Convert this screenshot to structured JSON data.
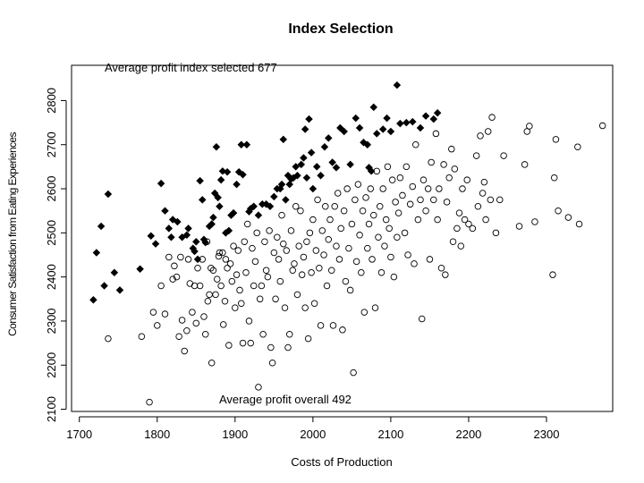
{
  "chart_data": {
    "type": "scatter",
    "title": "Index Selection",
    "xlabel": "Costs of Production",
    "ylabel": "Consumer Satisfaction from Eating Experiences",
    "xlim": [
      1690,
      2385
    ],
    "ylim": [
      2095,
      2880
    ],
    "xticks": [
      1700,
      1800,
      1900,
      2000,
      2100,
      2200,
      2300
    ],
    "yticks": [
      2100,
      2200,
      2300,
      2400,
      2500,
      2600,
      2700,
      2800
    ],
    "grid": false,
    "legend": "none",
    "annotations": {
      "selected": "Average profit index selected 677",
      "overall": "Average profit overall 492"
    },
    "series": [
      {
        "marker": "filled-diamond",
        "color": "#000000",
        "points": [
          [
            1718,
            2348
          ],
          [
            1722,
            2455
          ],
          [
            1728,
            2515
          ],
          [
            1732,
            2380
          ],
          [
            1737,
            2588
          ],
          [
            1745,
            2410
          ],
          [
            1752,
            2370
          ],
          [
            1778,
            2418
          ],
          [
            1792,
            2493
          ],
          [
            1798,
            2475
          ],
          [
            1805,
            2612
          ],
          [
            1810,
            2550
          ],
          [
            1815,
            2510
          ],
          [
            1818,
            2490
          ],
          [
            1820,
            2530
          ],
          [
            1826,
            2525
          ],
          [
            1832,
            2490
          ],
          [
            1838,
            2495
          ],
          [
            1840,
            2510
          ],
          [
            1846,
            2465
          ],
          [
            1848,
            2458
          ],
          [
            1850,
            2480
          ],
          [
            1852,
            2440
          ],
          [
            1855,
            2618
          ],
          [
            1858,
            2575
          ],
          [
            1860,
            2485
          ],
          [
            1862,
            2478
          ],
          [
            1867,
            2515
          ],
          [
            1870,
            2520
          ],
          [
            1872,
            2535
          ],
          [
            1874,
            2590
          ],
          [
            1876,
            2695
          ],
          [
            1878,
            2580
          ],
          [
            1880,
            2560
          ],
          [
            1882,
            2620
          ],
          [
            1884,
            2640
          ],
          [
            1888,
            2500
          ],
          [
            1890,
            2638
          ],
          [
            1892,
            2505
          ],
          [
            1895,
            2540
          ],
          [
            1898,
            2545
          ],
          [
            1902,
            2610
          ],
          [
            1905,
            2638
          ],
          [
            1908,
            2700
          ],
          [
            1910,
            2632
          ],
          [
            1915,
            2700
          ],
          [
            1918,
            2548
          ],
          [
            1920,
            2555
          ],
          [
            1924,
            2560
          ],
          [
            1930,
            2540
          ],
          [
            1935,
            2565
          ],
          [
            1940,
            2565
          ],
          [
            1945,
            2560
          ],
          [
            1950,
            2582
          ],
          [
            1954,
            2600
          ],
          [
            1958,
            2600
          ],
          [
            1960,
            2610
          ],
          [
            1962,
            2712
          ],
          [
            1965,
            2575
          ],
          [
            1968,
            2630
          ],
          [
            1970,
            2610
          ],
          [
            1972,
            2622
          ],
          [
            1975,
            2625
          ],
          [
            1978,
            2650
          ],
          [
            1980,
            2630
          ],
          [
            1985,
            2655
          ],
          [
            1988,
            2670
          ],
          [
            1990,
            2735
          ],
          [
            1992,
            2625
          ],
          [
            1995,
            2758
          ],
          [
            1998,
            2682
          ],
          [
            2000,
            2600
          ],
          [
            2005,
            2650
          ],
          [
            2010,
            2630
          ],
          [
            2015,
            2695
          ],
          [
            2020,
            2715
          ],
          [
            2025,
            2660
          ],
          [
            2030,
            2648
          ],
          [
            2035,
            2738
          ],
          [
            2040,
            2730
          ],
          [
            2048,
            2655
          ],
          [
            2055,
            2760
          ],
          [
            2060,
            2738
          ],
          [
            2065,
            2705
          ],
          [
            2070,
            2700
          ],
          [
            2072,
            2648
          ],
          [
            2075,
            2640
          ],
          [
            2078,
            2785
          ],
          [
            2082,
            2725
          ],
          [
            2090,
            2735
          ],
          [
            2095,
            2760
          ],
          [
            2100,
            2730
          ],
          [
            2108,
            2835
          ],
          [
            2112,
            2748
          ],
          [
            2120,
            2750
          ],
          [
            2128,
            2752
          ],
          [
            2138,
            2738
          ],
          [
            2145,
            2765
          ],
          [
            2155,
            2758
          ],
          [
            2160,
            2772
          ]
        ]
      },
      {
        "marker": "open-circle",
        "color": "#000000",
        "points": [
          [
            1737,
            2260
          ],
          [
            1780,
            2265
          ],
          [
            1790,
            2116
          ],
          [
            1795,
            2320
          ],
          [
            1800,
            2290
          ],
          [
            1805,
            2380
          ],
          [
            1810,
            2316
          ],
          [
            1815,
            2445
          ],
          [
            1820,
            2395
          ],
          [
            1822,
            2425
          ],
          [
            1825,
            2400
          ],
          [
            1828,
            2265
          ],
          [
            1830,
            2445
          ],
          [
            1832,
            2302
          ],
          [
            1835,
            2232
          ],
          [
            1838,
            2278
          ],
          [
            1840,
            2440
          ],
          [
            1842,
            2385
          ],
          [
            1845,
            2320
          ],
          [
            1848,
            2380
          ],
          [
            1850,
            2295
          ],
          [
            1852,
            2420
          ],
          [
            1855,
            2380
          ],
          [
            1858,
            2440
          ],
          [
            1860,
            2310
          ],
          [
            1862,
            2270
          ],
          [
            1864,
            2480
          ],
          [
            1865,
            2345
          ],
          [
            1867,
            2360
          ],
          [
            1869,
            2420
          ],
          [
            1870,
            2205
          ],
          [
            1872,
            2415
          ],
          [
            1875,
            2360
          ],
          [
            1877,
            2395
          ],
          [
            1879,
            2447
          ],
          [
            1880,
            2455
          ],
          [
            1882,
            2380
          ],
          [
            1884,
            2455
          ],
          [
            1885,
            2292
          ],
          [
            1887,
            2345
          ],
          [
            1888,
            2440
          ],
          [
            1890,
            2420
          ],
          [
            1892,
            2245
          ],
          [
            1894,
            2430
          ],
          [
            1896,
            2390
          ],
          [
            1898,
            2470
          ],
          [
            1900,
            2330
          ],
          [
            1902,
            2405
          ],
          [
            1904,
            2460
          ],
          [
            1906,
            2370
          ],
          [
            1908,
            2340
          ],
          [
            1910,
            2250
          ],
          [
            1912,
            2480
          ],
          [
            1914,
            2410
          ],
          [
            1916,
            2520
          ],
          [
            1918,
            2300
          ],
          [
            1920,
            2250
          ],
          [
            1922,
            2465
          ],
          [
            1924,
            2380
          ],
          [
            1926,
            2435
          ],
          [
            1928,
            2500
          ],
          [
            1930,
            2150
          ],
          [
            1932,
            2350
          ],
          [
            1934,
            2380
          ],
          [
            1936,
            2270
          ],
          [
            1938,
            2480
          ],
          [
            1940,
            2415
          ],
          [
            1942,
            2400
          ],
          [
            1944,
            2505
          ],
          [
            1946,
            2240
          ],
          [
            1948,
            2205
          ],
          [
            1950,
            2455
          ],
          [
            1952,
            2350
          ],
          [
            1954,
            2490
          ],
          [
            1956,
            2440
          ],
          [
            1958,
            2390
          ],
          [
            1960,
            2540
          ],
          [
            1962,
            2475
          ],
          [
            1964,
            2330
          ],
          [
            1966,
            2460
          ],
          [
            1968,
            2240
          ],
          [
            1970,
            2270
          ],
          [
            1972,
            2505
          ],
          [
            1974,
            2415
          ],
          [
            1976,
            2430
          ],
          [
            1978,
            2560
          ],
          [
            1980,
            2360
          ],
          [
            1982,
            2470
          ],
          [
            1984,
            2550
          ],
          [
            1986,
            2405
          ],
          [
            1988,
            2445
          ],
          [
            1990,
            2330
          ],
          [
            1992,
            2480
          ],
          [
            1994,
            2260
          ],
          [
            1996,
            2500
          ],
          [
            1998,
            2410
          ],
          [
            2000,
            2530
          ],
          [
            2002,
            2340
          ],
          [
            2004,
            2460
          ],
          [
            2006,
            2575
          ],
          [
            2008,
            2420
          ],
          [
            2010,
            2290
          ],
          [
            2012,
            2505
          ],
          [
            2014,
            2450
          ],
          [
            2016,
            2560
          ],
          [
            2018,
            2380
          ],
          [
            2020,
            2485
          ],
          [
            2022,
            2530
          ],
          [
            2024,
            2415
          ],
          [
            2026,
            2290
          ],
          [
            2028,
            2560
          ],
          [
            2030,
            2470
          ],
          [
            2032,
            2590
          ],
          [
            2034,
            2440
          ],
          [
            2036,
            2510
          ],
          [
            2038,
            2280
          ],
          [
            2040,
            2550
          ],
          [
            2042,
            2390
          ],
          [
            2044,
            2600
          ],
          [
            2046,
            2465
          ],
          [
            2048,
            2370
          ],
          [
            2050,
            2520
          ],
          [
            2052,
            2183
          ],
          [
            2054,
            2575
          ],
          [
            2056,
            2435
          ],
          [
            2058,
            2610
          ],
          [
            2060,
            2495
          ],
          [
            2062,
            2410
          ],
          [
            2064,
            2550
          ],
          [
            2066,
            2320
          ],
          [
            2068,
            2580
          ],
          [
            2070,
            2465
          ],
          [
            2072,
            2520
          ],
          [
            2074,
            2600
          ],
          [
            2076,
            2440
          ],
          [
            2078,
            2540
          ],
          [
            2080,
            2330
          ],
          [
            2082,
            2640
          ],
          [
            2084,
            2490
          ],
          [
            2086,
            2560
          ],
          [
            2088,
            2410
          ],
          [
            2090,
            2600
          ],
          [
            2092,
            2470
          ],
          [
            2094,
            2530
          ],
          [
            2096,
            2650
          ],
          [
            2098,
            2510
          ],
          [
            2100,
            2445
          ],
          [
            2102,
            2620
          ],
          [
            2104,
            2400
          ],
          [
            2106,
            2570
          ],
          [
            2108,
            2490
          ],
          [
            2110,
            2545
          ],
          [
            2112,
            2625
          ],
          [
            2115,
            2585
          ],
          [
            2118,
            2500
          ],
          [
            2120,
            2650
          ],
          [
            2122,
            2450
          ],
          [
            2125,
            2565
          ],
          [
            2128,
            2605
          ],
          [
            2130,
            2430
          ],
          [
            2132,
            2700
          ],
          [
            2135,
            2530
          ],
          [
            2138,
            2575
          ],
          [
            2140,
            2305
          ],
          [
            2142,
            2620
          ],
          [
            2145,
            2550
          ],
          [
            2148,
            2600
          ],
          [
            2150,
            2440
          ],
          [
            2152,
            2660
          ],
          [
            2155,
            2575
          ],
          [
            2158,
            2725
          ],
          [
            2160,
            2530
          ],
          [
            2162,
            2600
          ],
          [
            2165,
            2420
          ],
          [
            2168,
            2655
          ],
          [
            2170,
            2405
          ],
          [
            2172,
            2570
          ],
          [
            2175,
            2625
          ],
          [
            2178,
            2690
          ],
          [
            2180,
            2480
          ],
          [
            2182,
            2645
          ],
          [
            2185,
            2510
          ],
          [
            2188,
            2545
          ],
          [
            2190,
            2470
          ],
          [
            2192,
            2600
          ],
          [
            2195,
            2530
          ],
          [
            2198,
            2620
          ],
          [
            2200,
            2520
          ],
          [
            2205,
            2510
          ],
          [
            2210,
            2675
          ],
          [
            2212,
            2560
          ],
          [
            2215,
            2720
          ],
          [
            2218,
            2590
          ],
          [
            2220,
            2615
          ],
          [
            2222,
            2530
          ],
          [
            2225,
            2730
          ],
          [
            2228,
            2575
          ],
          [
            2230,
            2762
          ],
          [
            2235,
            2500
          ],
          [
            2240,
            2575
          ],
          [
            2245,
            2675
          ],
          [
            2265,
            2515
          ],
          [
            2272,
            2655
          ],
          [
            2275,
            2730
          ],
          [
            2278,
            2742
          ],
          [
            2285,
            2525
          ],
          [
            2308,
            2405
          ],
          [
            2310,
            2625
          ],
          [
            2312,
            2712
          ],
          [
            2315,
            2550
          ],
          [
            2328,
            2535
          ],
          [
            2340,
            2695
          ],
          [
            2342,
            2520
          ],
          [
            2372,
            2743
          ]
        ]
      }
    ]
  }
}
